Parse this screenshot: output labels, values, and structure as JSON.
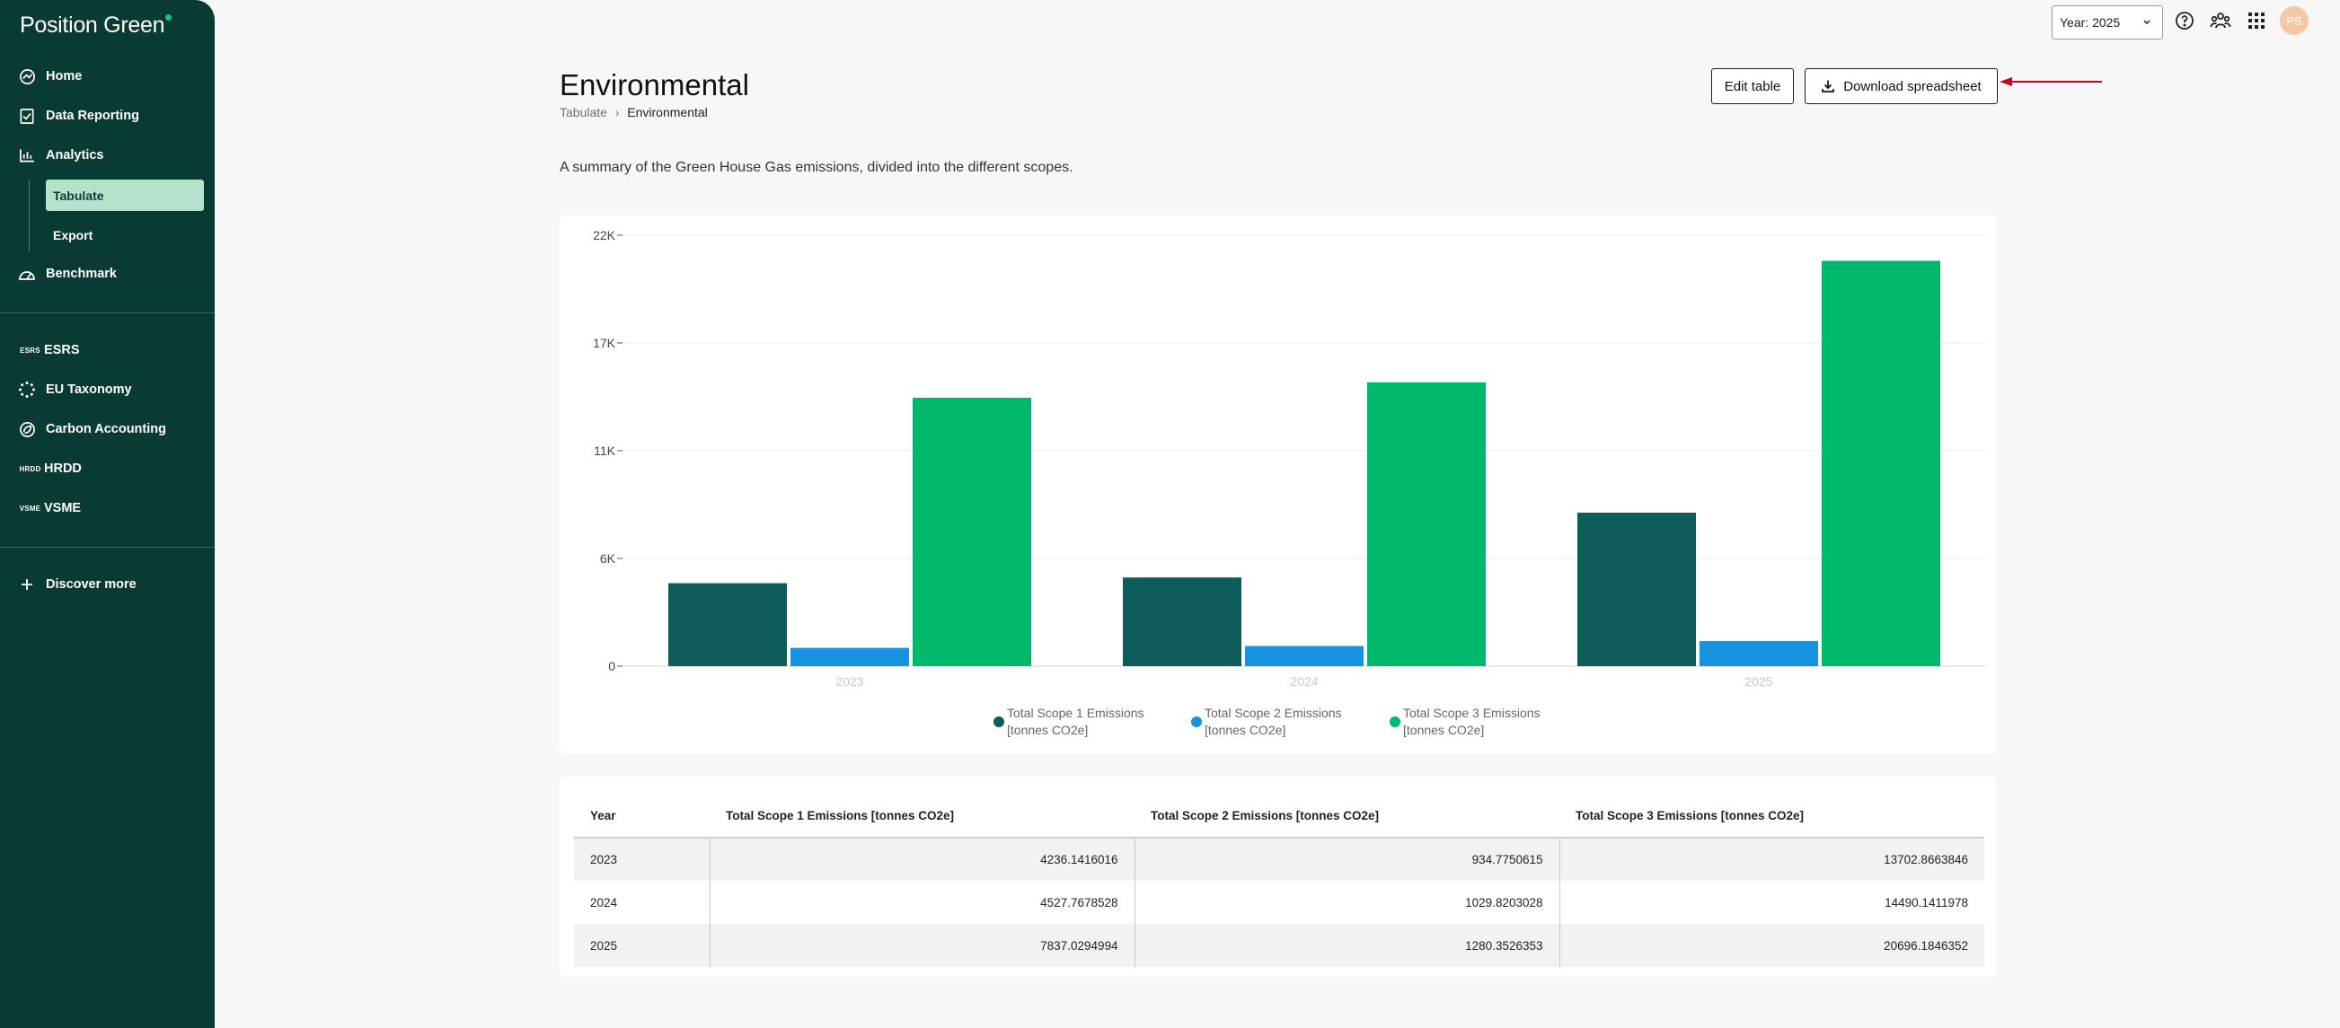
{
  "app": {
    "brand": "Position Green"
  },
  "sidebar": {
    "items": [
      {
        "label": "Home",
        "icon": "home-icon"
      },
      {
        "label": "Data Reporting",
        "icon": "data-reporting-icon"
      },
      {
        "label": "Analytics",
        "icon": "analytics-icon"
      },
      {
        "label": "Benchmark",
        "icon": "benchmark-icon"
      }
    ],
    "analytics_sub": [
      {
        "label": "Tabulate",
        "active": true
      },
      {
        "label": "Export",
        "active": false
      }
    ],
    "modules": [
      {
        "label": "ESRS",
        "icon_text": "ESRS"
      },
      {
        "label": "EU Taxonomy",
        "icon": "eu-taxonomy-icon"
      },
      {
        "label": "Carbon Accounting",
        "icon": "carbon-accounting-icon"
      },
      {
        "label": "HRDD",
        "icon_text": "HRDD"
      },
      {
        "label": "VSME",
        "icon_text": "VSME"
      }
    ],
    "discover": {
      "label": "Discover more",
      "icon": "plus-icon"
    }
  },
  "topbar": {
    "year_select": "Year: 2025",
    "icons": [
      "help-icon",
      "community-icon",
      "apps-grid-icon"
    ],
    "avatar_initials": "PS"
  },
  "page": {
    "title": "Environmental",
    "breadcrumb": [
      "Tabulate",
      "Environmental"
    ],
    "edit_button": "Edit table",
    "download_button": "Download spreadsheet",
    "description": "A summary of the Green House Gas emissions, divided into the different scopes."
  },
  "colors": {
    "sidebar": "#0a3b32",
    "scope1": "#0d5c5a",
    "scope2": "#1692e0",
    "scope3": "#00b86b",
    "arrow": "#d0021b"
  },
  "chart_data": {
    "type": "bar",
    "categories": [
      "2023",
      "2024",
      "2025"
    ],
    "series": [
      {
        "name": "Total Scope 1 Emissions [tonnes CO2e]",
        "values": [
          4236.1416016,
          4527.7678528,
          7837.0294994
        ]
      },
      {
        "name": "Total Scope 2 Emissions [tonnes CO2e]",
        "values": [
          934.7750615,
          1029.8203028,
          1280.3526353
        ]
      },
      {
        "name": "Total Scope 3 Emissions [tonnes CO2e]",
        "values": [
          13702.8663846,
          14490.1411978,
          20696.1846352
        ]
      }
    ],
    "y_ticks": [
      0,
      5500,
      11000,
      16500,
      22000
    ],
    "y_tick_labels": [
      "0",
      "6K",
      "11K",
      "17K",
      "22K"
    ],
    "ylim": [
      0,
      22000
    ],
    "grid": true,
    "legend_position": "bottom-center"
  },
  "table": {
    "columns": [
      "Year",
      "Total Scope 1 Emissions [tonnes CO2e]",
      "Total Scope 2 Emissions [tonnes CO2e]",
      "Total Scope 3 Emissions [tonnes CO2e]"
    ],
    "rows": [
      [
        "2023",
        "4236.1416016",
        "934.7750615",
        "13702.8663846"
      ],
      [
        "2024",
        "4527.7678528",
        "1029.8203028",
        "14490.1411978"
      ],
      [
        "2025",
        "7837.0294994",
        "1280.3526353",
        "20696.1846352"
      ]
    ]
  }
}
